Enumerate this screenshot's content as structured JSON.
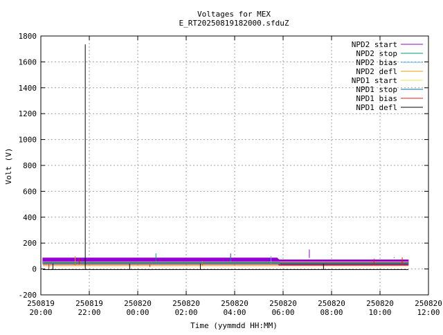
{
  "chart_data": {
    "type": "line",
    "title": "Voltages for MEX",
    "subtitle": "E_RT20250819182000.sfduZ",
    "xlabel": "Time (yymmdd HH:MM)",
    "ylabel": "Volt (V)",
    "xlim": [
      "2025-08-19 20:00",
      "2025-08-20 12:00"
    ],
    "ylim": [
      -200,
      1800
    ],
    "grid": true,
    "legend_position": "top-right",
    "x_ticks": [
      {
        "t": "2025-08-19 20:00",
        "date": "250819",
        "time": "20:00"
      },
      {
        "t": "2025-08-19 22:00",
        "date": "250819",
        "time": "22:00"
      },
      {
        "t": "2025-08-20 00:00",
        "date": "250820",
        "time": "00:00"
      },
      {
        "t": "2025-08-20 02:00",
        "date": "250820",
        "time": "02:00"
      },
      {
        "t": "2025-08-20 04:00",
        "date": "250820",
        "time": "04:00"
      },
      {
        "t": "2025-08-20 06:00",
        "date": "250820",
        "time": "06:00"
      },
      {
        "t": "2025-08-20 08:00",
        "date": "250820",
        "time": "08:00"
      },
      {
        "t": "2025-08-20 10:00",
        "date": "250820",
        "time": "10:00"
      },
      {
        "t": "2025-08-20 12:00",
        "date": "250820",
        "time": "12:00"
      }
    ],
    "y_ticks": [
      -200,
      0,
      200,
      400,
      600,
      800,
      1000,
      1200,
      1400,
      1600,
      1800
    ],
    "series": [
      {
        "name": "NPD2 start",
        "color": "#9400d3",
        "x": [
          "2025-08-19 20:05",
          "2025-08-20 05:45",
          "2025-08-20 05:50",
          "2025-08-20 11:10"
        ],
        "y_min": [
          40,
          40,
          30,
          30
        ],
        "y_max": [
          85,
          85,
          70,
          70
        ],
        "spikes": [
          {
            "t": "2025-08-20 03:50",
            "y": 120
          },
          {
            "t": "2025-08-20 07:05",
            "y": 150
          },
          {
            "t": "2025-08-20 10:35",
            "y": 90
          }
        ]
      },
      {
        "name": "NPD2 stop",
        "color": "#009e73",
        "x": [
          "2025-08-19 20:05",
          "2025-08-20 11:10"
        ],
        "y": [
          45,
          45
        ],
        "spikes": [
          {
            "t": "2025-08-20 00:45",
            "y": 120
          },
          {
            "t": "2025-08-20 03:50",
            "y": 100
          }
        ]
      },
      {
        "name": "NPD2 bias",
        "color": "#56b4e9",
        "x": [
          "2025-08-19 20:05",
          "2025-08-20 11:10"
        ],
        "y": [
          40,
          40
        ],
        "spikes": [
          {
            "t": "2025-08-20 05:30",
            "y": 100
          }
        ]
      },
      {
        "name": "NPD2 defl",
        "color": "#e69f00",
        "x": [
          "2025-08-19 20:05",
          "2025-08-20 11:10"
        ],
        "y": [
          25,
          25
        ],
        "spikes": [
          {
            "t": "2025-08-19 21:25",
            "y": 100
          },
          {
            "t": "2025-08-20 02:40",
            "y": 60
          }
        ]
      },
      {
        "name": "NPD1 start",
        "color": "#f0e442",
        "x": [
          "2025-08-19 20:05",
          "2025-08-20 11:10"
        ],
        "y": [
          55,
          55
        ],
        "spikes": []
      },
      {
        "name": "NPD1 stop",
        "color": "#0072b2",
        "x": [
          "2025-08-19 20:05",
          "2025-08-20 05:50",
          "2025-08-20 05:55",
          "2025-08-20 11:10"
        ],
        "y": [
          50,
          50,
          40,
          40
        ],
        "spikes": []
      },
      {
        "name": "NPD1 bias",
        "color": "#e51e10",
        "x": [
          "2025-08-19 20:05",
          "2025-08-20 11:10"
        ],
        "y": [
          35,
          35
        ],
        "spikes": [
          {
            "t": "2025-08-19 20:20",
            "y": 0
          },
          {
            "t": "2025-08-19 21:35",
            "y": 80
          },
          {
            "t": "2025-08-20 00:30",
            "y": 15
          },
          {
            "t": "2025-08-20 09:45",
            "y": 80
          },
          {
            "t": "2025-08-20 10:55",
            "y": 90
          }
        ]
      },
      {
        "name": "NPD1 defl",
        "color": "#000000",
        "x": [
          "2025-08-19 20:05",
          "2025-08-20 11:10"
        ],
        "y": [
          -5,
          -5
        ],
        "spikes": [
          {
            "t": "2025-08-19 20:30",
            "y": 40
          },
          {
            "t": "2025-08-19 21:50",
            "y": 1735
          },
          {
            "t": "2025-08-19 23:40",
            "y": 40
          },
          {
            "t": "2025-08-20 02:35",
            "y": 40
          },
          {
            "t": "2025-08-20 07:40",
            "y": 40
          }
        ]
      }
    ]
  }
}
